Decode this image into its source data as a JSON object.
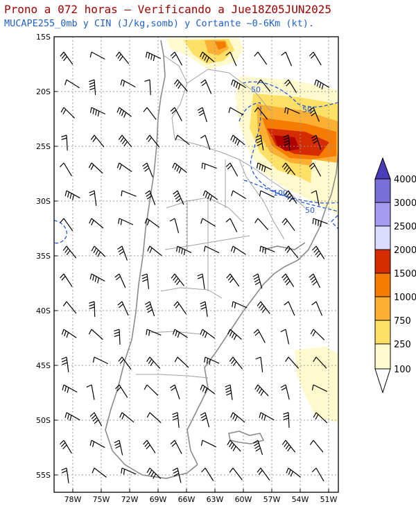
{
  "header": {
    "title": "Prono a 072 horas – Verificando a Jue18Z05JUN2025",
    "subtitle": "MUCAPE255_0mb y CIN (J/kg,somb) y Cortante ~0-6Km (kt)."
  },
  "axes": {
    "lat_labels": [
      "15S",
      "20S",
      "25S",
      "30S",
      "35S",
      "40S",
      "45S",
      "50S",
      "55S"
    ],
    "lon_labels": [
      "78W",
      "75W",
      "72W",
      "69W",
      "66W",
      "63W",
      "60W",
      "57W",
      "54W",
      "51W"
    ]
  },
  "contour_labels": [
    "50",
    "50",
    "100",
    "50"
  ],
  "legend": {
    "levels": [
      "100",
      "250",
      "750",
      "1000",
      "1500",
      "2000",
      "2500",
      "3000",
      "4000"
    ],
    "colors": [
      "#fffacd",
      "#ffe066",
      "#fbb034",
      "#f57c00",
      "#d52b00",
      "#b00000",
      "#dcdcff",
      "#a59bf0",
      "#7a6fd8",
      "#4b3db8"
    ]
  }
}
